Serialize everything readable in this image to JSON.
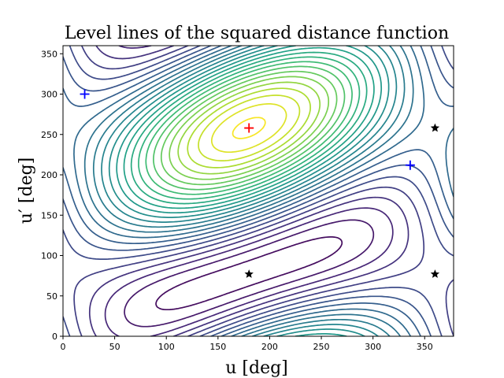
{
  "chart_data": {
    "type": "contour",
    "title": "Level lines of the squared distance function",
    "xlabel": "u [deg]",
    "ylabel": "u′ [deg]",
    "xlim": [
      0,
      378
    ],
    "ylim": [
      0,
      360
    ],
    "xticks": [
      0,
      50,
      100,
      150,
      200,
      250,
      300,
      350
    ],
    "yticks": [
      0,
      50,
      100,
      150,
      200,
      250,
      300,
      350
    ],
    "colormap": "viridis",
    "grid": false,
    "markers": [
      {
        "kind": "plus",
        "color": "#ff0000",
        "x": 180,
        "y": 258
      },
      {
        "kind": "plus",
        "color": "#0000ff",
        "x": 21,
        "y": 300
      },
      {
        "kind": "plus",
        "color": "#0000ff",
        "x": 336,
        "y": 212
      },
      {
        "kind": "star",
        "color": "#000000",
        "x": 180,
        "y": 77
      },
      {
        "kind": "star",
        "color": "#000000",
        "x": 360,
        "y": 258
      },
      {
        "kind": "star",
        "color": "#000000",
        "x": 360,
        "y": 77
      }
    ]
  }
}
